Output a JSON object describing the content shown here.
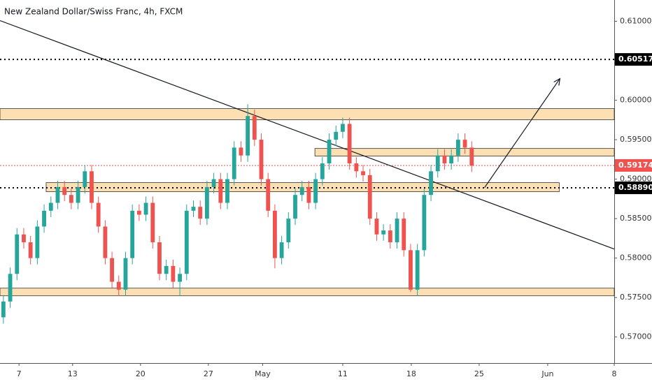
{
  "chart_data": {
    "type": "candlestick",
    "title": "New Zealand Dollar/Swiss Franc, 4h, FXCM",
    "up_color": "#26a69a",
    "down_color": "#ef5350",
    "open": [
      0.5725,
      0.5745,
      0.578,
      0.583,
      0.582,
      0.58,
      0.584,
      0.586,
      0.587,
      0.589,
      0.588,
      0.587,
      0.589,
      0.591,
      0.587,
      0.584,
      0.58,
      0.577,
      0.576,
      0.58,
      0.586,
      0.5855,
      0.587,
      0.582,
      0.578,
      0.579,
      0.577,
      0.578,
      0.586,
      0.5865,
      0.585,
      0.589,
      0.59,
      0.587,
      0.59,
      0.594,
      0.593,
      0.598,
      0.595,
      0.59,
      0.586,
      0.58,
      0.582,
      0.585,
      0.588,
      0.589,
      0.587,
      0.59,
      0.592,
      0.595,
      0.596,
      0.597,
      0.592,
      0.591,
      0.5905,
      0.585,
      0.583,
      0.5835,
      0.582,
      0.585,
      0.581,
      0.576,
      0.581,
      0.588,
      0.591,
      0.593,
      0.592,
      0.593,
      0.595,
      0.594
    ],
    "high": [
      0.5753,
      0.5788,
      0.5838,
      0.5838,
      0.5828,
      0.5848,
      0.5868,
      0.5878,
      0.5898,
      0.5898,
      0.5888,
      0.5898,
      0.5918,
      0.5918,
      0.5878,
      0.5848,
      0.5808,
      0.5778,
      0.5808,
      0.5868,
      0.5868,
      0.5878,
      0.5878,
      0.5828,
      0.5798,
      0.5798,
      0.5788,
      0.5868,
      0.5873,
      0.5873,
      0.5898,
      0.5908,
      0.5908,
      0.5908,
      0.5948,
      0.5948,
      0.5995,
      0.5988,
      0.5958,
      0.5908,
      0.5868,
      0.5828,
      0.5858,
      0.5888,
      0.5898,
      0.5898,
      0.5908,
      0.5928,
      0.5958,
      0.5968,
      0.5978,
      0.5978,
      0.5928,
      0.5918,
      0.5913,
      0.5858,
      0.5843,
      0.5843,
      0.5858,
      0.5858,
      0.5818,
      0.5818,
      0.5888,
      0.5918,
      0.5938,
      0.5938,
      0.5938,
      0.5958,
      0.5958,
      0.5948
    ],
    "low": [
      0.5717,
      0.5737,
      0.5772,
      0.5812,
      0.5792,
      0.5792,
      0.5832,
      0.5852,
      0.5862,
      0.5872,
      0.5862,
      0.5862,
      0.5882,
      0.5862,
      0.5832,
      0.5792,
      0.5762,
      0.5752,
      0.5752,
      0.5792,
      0.5847,
      0.5847,
      0.5812,
      0.5772,
      0.5772,
      0.5762,
      0.5752,
      0.5772,
      0.5852,
      0.5842,
      0.5842,
      0.5882,
      0.5862,
      0.5862,
      0.5892,
      0.5922,
      0.5922,
      0.5942,
      0.5892,
      0.5852,
      0.5787,
      0.5792,
      0.5812,
      0.5842,
      0.5872,
      0.5862,
      0.5862,
      0.5892,
      0.5912,
      0.5942,
      0.5952,
      0.5912,
      0.5902,
      0.5897,
      0.5842,
      0.5822,
      0.5822,
      0.5812,
      0.5812,
      0.5802,
      0.5757,
      0.5752,
      0.5802,
      0.5872,
      0.5902,
      0.5912,
      0.5912,
      0.5922,
      0.5932,
      0.5909
    ],
    "close": [
      0.5745,
      0.578,
      0.583,
      0.582,
      0.58,
      0.584,
      0.586,
      0.587,
      0.589,
      0.588,
      0.587,
      0.589,
      0.591,
      0.587,
      0.584,
      0.58,
      0.577,
      0.576,
      0.58,
      0.586,
      0.5855,
      0.587,
      0.582,
      0.578,
      0.579,
      0.577,
      0.578,
      0.586,
      0.5865,
      0.585,
      0.589,
      0.59,
      0.587,
      0.59,
      0.594,
      0.593,
      0.598,
      0.595,
      0.59,
      0.586,
      0.58,
      0.582,
      0.585,
      0.588,
      0.589,
      0.587,
      0.59,
      0.592,
      0.595,
      0.596,
      0.597,
      0.592,
      0.591,
      0.5905,
      0.585,
      0.583,
      0.5835,
      0.582,
      0.585,
      0.581,
      0.576,
      0.581,
      0.588,
      0.591,
      0.593,
      0.592,
      0.593,
      0.595,
      0.594,
      0.5917
    ],
    "xlim": [
      0,
      90.5
    ],
    "xticks": [
      {
        "value": 2.8,
        "label": "7"
      },
      {
        "value": 10.7,
        "label": "13"
      },
      {
        "value": 20.7,
        "label": "20"
      },
      {
        "value": 30.7,
        "label": "27"
      },
      {
        "value": 38.7,
        "label": "May"
      },
      {
        "value": 50.5,
        "label": "11"
      },
      {
        "value": 60.6,
        "label": "18"
      },
      {
        "value": 70.6,
        "label": "25"
      },
      {
        "value": 80.7,
        "label": "Jun"
      },
      {
        "value": 90.5,
        "label": "8"
      }
    ],
    "ylim": [
      0.5667,
      0.6127
    ],
    "yticks": [
      {
        "value": 0.61,
        "label": "0.61000"
      },
      {
        "value": 0.6,
        "label": "0.60000"
      },
      {
        "value": 0.595,
        "label": "0.59500"
      },
      {
        "value": 0.59,
        "label": "0.59000"
      },
      {
        "value": 0.585,
        "label": "0.58500"
      },
      {
        "value": 0.58,
        "label": "0.58000"
      },
      {
        "value": 0.575,
        "label": "0.57500"
      },
      {
        "value": 0.57,
        "label": "0.57000"
      }
    ],
    "price_lines": [
      {
        "value": 0.60517,
        "label": "0.60517",
        "color": "#000000"
      },
      {
        "value": 0.5889,
        "label": "0.58890",
        "color": "#000000"
      },
      {
        "value": 0.59174,
        "label": "0.59174",
        "color": "#ef5350"
      }
    ],
    "zones": [
      {
        "from": 0.59752,
        "to": 0.59894,
        "x0": 0,
        "x1": 90.5
      },
      {
        "from": 0.59292,
        "to": 0.59389,
        "x0": 46.4,
        "x1": 90.5
      },
      {
        "from": 0.58841,
        "to": 0.58956,
        "x0": 6.8,
        "x1": 82.4
      },
      {
        "from": 0.57522,
        "to": 0.57619,
        "x0": 0,
        "x1": 90.5
      }
    ],
    "trend_line": {
      "x": [
        0,
        90.5
      ],
      "y": [
        0.61009,
        0.58115
      ]
    },
    "arrow": {
      "x": [
        71.4,
        82.5
      ],
      "y": [
        0.58894,
        0.60274
      ]
    }
  }
}
